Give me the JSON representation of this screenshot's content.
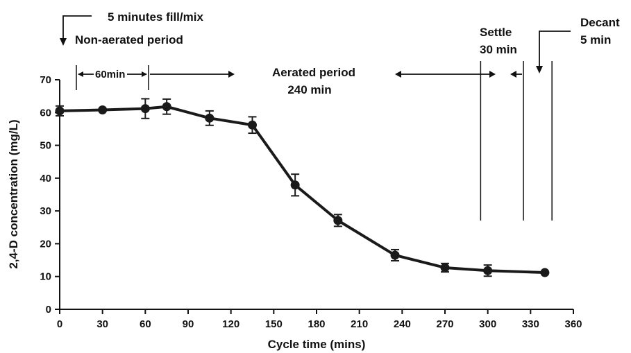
{
  "chart_data": {
    "type": "line",
    "xlabel": "Cycle time (mins)",
    "ylabel": "2,4-D concentration (mg/L)",
    "xlim": [
      0,
      360
    ],
    "ylim": [
      0,
      70
    ],
    "x_ticks": [
      0,
      30,
      60,
      90,
      120,
      150,
      180,
      210,
      240,
      270,
      300,
      330,
      360
    ],
    "y_ticks": [
      0,
      10,
      20,
      30,
      40,
      50,
      60,
      70
    ],
    "grid": false,
    "series": [
      {
        "x": [
          0,
          30,
          60,
          75,
          105,
          135,
          165,
          195,
          235,
          270,
          300,
          340
        ],
        "y": [
          60.5,
          60.8,
          61.2,
          61.8,
          58.3,
          56.2,
          37.9,
          27.1,
          16.5,
          12.7,
          11.8,
          11.2
        ],
        "error": [
          1.5,
          0,
          3,
          2.3,
          2.2,
          2.5,
          3.3,
          1.8,
          1.7,
          1.3,
          1.7,
          0
        ]
      }
    ],
    "phase_lines_x": [
      295,
      325,
      345
    ],
    "annotations": {
      "fill_mix": "5 minutes fill/mix",
      "non_aerated": "Non-aerated period",
      "sixty_min": "60min",
      "aerated_line1": "Aerated period",
      "aerated_line2": "240 min",
      "settle_line1": "Settle",
      "settle_line2": "30 min",
      "decant_line1": "Decant",
      "decant_line2": "5 min"
    }
  }
}
